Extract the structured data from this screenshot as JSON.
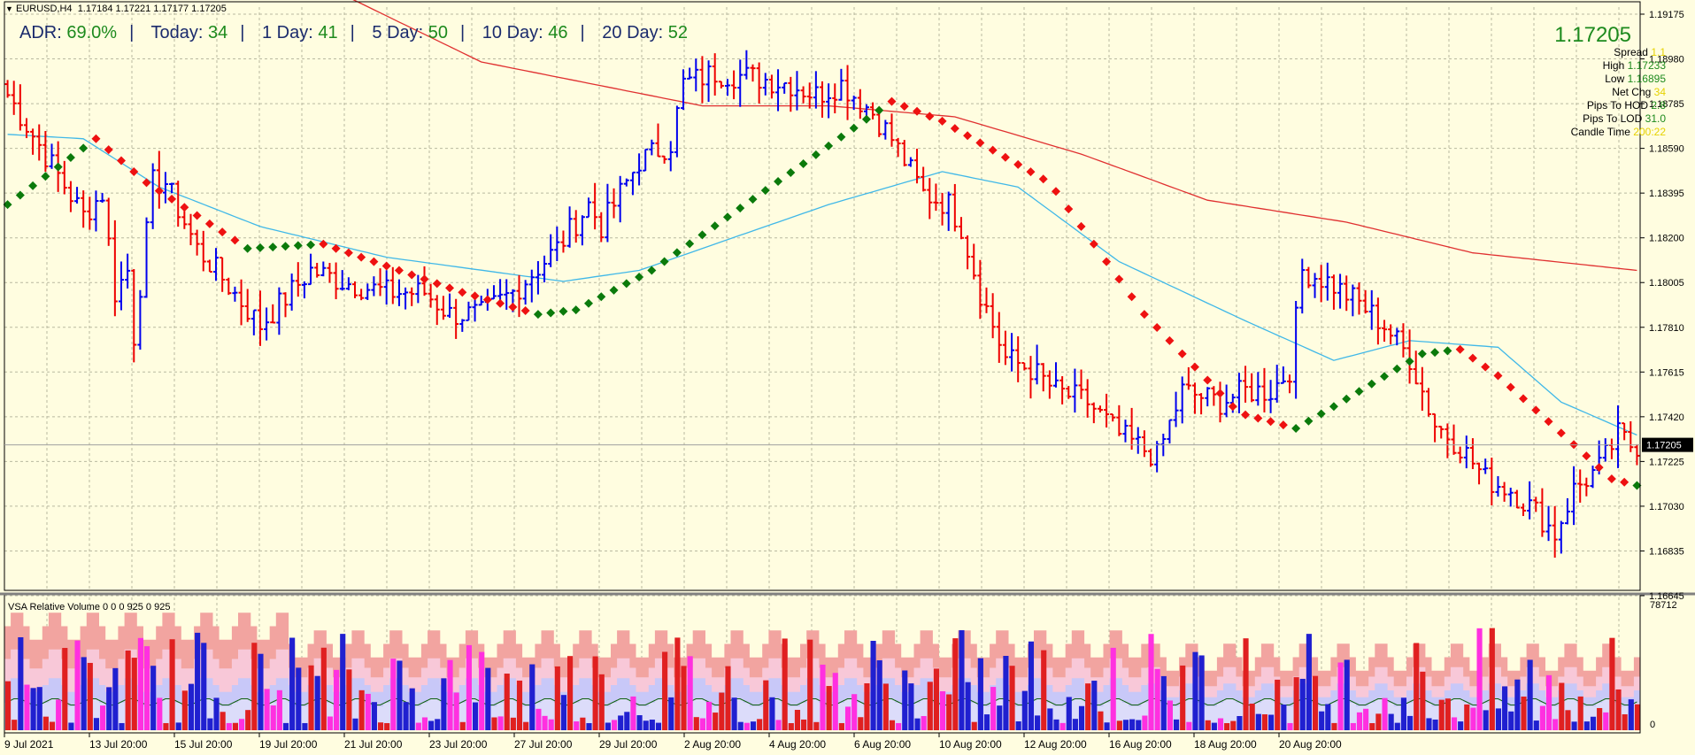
{
  "header": {
    "symbol": "EURUSD,H4",
    "ohlc": "1.17184 1.17221 1.17177 1.17205",
    "toggle_icon": "triangle-down-icon"
  },
  "adr_bar": {
    "adr_label": "ADR:",
    "adr_value": "69.0%",
    "today_label": "Today:",
    "today_value": "34",
    "day1_label": "1 Day:",
    "day1_value": "41",
    "day5_label": "5 Day:",
    "day5_value": "50",
    "day10_label": "10 Day:",
    "day10_value": "46",
    "day20_label": "20 Day:",
    "day20_value": "52"
  },
  "info_panel": {
    "price": "1.17205",
    "rows": [
      {
        "label": "Spread",
        "value": "1.1",
        "color": "#e6d200"
      },
      {
        "label": "High",
        "value": "1.17233",
        "color": "#1d8a1d"
      },
      {
        "label": "Low",
        "value": "1.16895",
        "color": "#1d8a1d"
      },
      {
        "label": "Net Chg",
        "value": "34",
        "color": "#e6d200"
      },
      {
        "label": "Pips To HOD",
        "value": "2.8",
        "color": "#1d8a1d"
      },
      {
        "label": "Pips To LOD",
        "value": "31.0",
        "color": "#1d8a1d"
      },
      {
        "label": "Candle Time",
        "value": "200:22",
        "color": "#e6d200"
      }
    ]
  },
  "indicator": {
    "title": "VSA Relative Volume 0 0 0 925 0 925",
    "axis_top": "78712",
    "axis_bottom": "0"
  },
  "colors": {
    "background": "#fffde0",
    "bull": "#0000ee",
    "bear": "#ee0000",
    "trend_up": "#0b7a0b",
    "trend_down": "#ee1111",
    "ma_fast": "#40b8e8",
    "ma_slow": "#e03030"
  },
  "chart_data": {
    "type": "bar",
    "price_axis": {
      "min": 1.1655,
      "max": 1.192,
      "ticks": [
        "1.19175",
        "1.18980",
        "1.18785",
        "1.18590",
        "1.18395",
        "1.18200",
        "1.18005",
        "1.17810",
        "1.17615",
        "1.17420",
        "1.17225",
        "1.17030",
        "1.16835",
        "1.16645"
      ],
      "current_price_label": "1.17205",
      "current_price": 1.17205
    },
    "time_axis": {
      "labels": [
        "9 Jul 2021",
        "13 Jul 20:00",
        "15 Jul 20:00",
        "19 Jul 20:00",
        "21 Jul 20:00",
        "23 Jul 20:00",
        "27 Jul 20:00",
        "29 Jul 20:00",
        "2 Aug 20:00",
        "4 Aug 20:00",
        "6 Aug 20:00",
        "10 Aug 20:00",
        "12 Aug 20:00",
        "16 Aug 20:00",
        "18 Aug 20:00",
        "20 Aug 20:00"
      ]
    },
    "grid": true,
    "path_points": [
      [
        0,
        1.188
      ],
      [
        12,
        1.1825
      ],
      [
        15,
        1.1835
      ],
      [
        17,
        1.179
      ],
      [
        19,
        1.18
      ],
      [
        20,
        1.177
      ],
      [
        23,
        1.184
      ],
      [
        25,
        1.184
      ],
      [
        30,
        1.181
      ],
      [
        33,
        1.18
      ],
      [
        40,
        1.1775
      ],
      [
        48,
        1.18
      ],
      [
        53,
        1.1795
      ],
      [
        60,
        1.179
      ],
      [
        66,
        1.179
      ],
      [
        70,
        1.178
      ],
      [
        75,
        1.178
      ],
      [
        80,
        1.179
      ],
      [
        87,
        1.181
      ],
      [
        92,
        1.183
      ],
      [
        94,
        1.182
      ],
      [
        100,
        1.185
      ],
      [
        105,
        1.1858
      ],
      [
        107,
        1.1885
      ],
      [
        112,
        1.189
      ],
      [
        118,
        1.1888
      ],
      [
        124,
        1.1885
      ],
      [
        128,
        1.188
      ],
      [
        132,
        1.1885
      ],
      [
        137,
        1.1872
      ],
      [
        140,
        1.186
      ],
      [
        145,
        1.1835
      ],
      [
        149,
        1.183
      ],
      [
        151,
        1.182
      ],
      [
        154,
        1.179
      ],
      [
        158,
        1.176
      ],
      [
        162,
        1.1755
      ],
      [
        166,
        1.1745
      ],
      [
        171,
        1.174
      ],
      [
        176,
        1.1725
      ],
      [
        182,
        1.1715
      ],
      [
        186,
        1.1745
      ],
      [
        192,
        1.174
      ],
      [
        196,
        1.1745
      ],
      [
        200,
        1.1745
      ],
      [
        203,
        1.1755
      ],
      [
        205,
        1.18
      ],
      [
        209,
        1.1795
      ],
      [
        214,
        1.1785
      ],
      [
        218,
        1.1775
      ],
      [
        222,
        1.176
      ],
      [
        226,
        1.173
      ],
      [
        230,
        1.172
      ],
      [
        234,
        1.1705
      ],
      [
        238,
        1.17
      ],
      [
        242,
        1.169
      ],
      [
        245,
        1.168
      ],
      [
        248,
        1.17
      ],
      [
        252,
        1.171
      ],
      [
        255,
        1.1725
      ],
      [
        257,
        1.17205
      ]
    ],
    "trend_line": [
      [
        0,
        1.183
      ],
      [
        14,
        1.186
      ],
      [
        22,
        1.184
      ],
      [
        38,
        1.181
      ],
      [
        50,
        1.1812
      ],
      [
        72,
        1.179
      ],
      [
        84,
        1.178
      ],
      [
        90,
        1.1782
      ],
      [
        102,
        1.18
      ],
      [
        140,
        1.1877
      ],
      [
        148,
        1.1868
      ],
      [
        165,
        1.184
      ],
      [
        180,
        1.178
      ],
      [
        195,
        1.1735
      ],
      [
        204,
        1.1728
      ],
      [
        210,
        1.1738
      ],
      [
        224,
        1.1762
      ],
      [
        230,
        1.1764
      ],
      [
        236,
        1.1752
      ],
      [
        254,
        1.1705
      ],
      [
        258,
        1.1702
      ]
    ],
    "ma_fast": [
      [
        0,
        1.1862
      ],
      [
        12,
        1.186
      ],
      [
        24,
        1.1838
      ],
      [
        40,
        1.182
      ],
      [
        60,
        1.1806
      ],
      [
        88,
        1.1795
      ],
      [
        100,
        1.18
      ],
      [
        112,
        1.1812
      ],
      [
        130,
        1.183
      ],
      [
        148,
        1.1845
      ],
      [
        160,
        1.1838
      ],
      [
        176,
        1.1804
      ],
      [
        196,
        1.1777
      ],
      [
        210,
        1.1759
      ],
      [
        222,
        1.1768
      ],
      [
        236,
        1.1765
      ],
      [
        246,
        1.174
      ],
      [
        258,
        1.1725
      ]
    ],
    "ma_slow": [
      [
        50,
        1.193
      ],
      [
        75,
        1.1895
      ],
      [
        110,
        1.1875
      ],
      [
        130,
        1.1875
      ],
      [
        150,
        1.187
      ],
      [
        170,
        1.1853
      ],
      [
        190,
        1.1832
      ],
      [
        212,
        1.1822
      ],
      [
        232,
        1.1808
      ],
      [
        258,
        1.18
      ]
    ],
    "volume_bars": 259
  }
}
